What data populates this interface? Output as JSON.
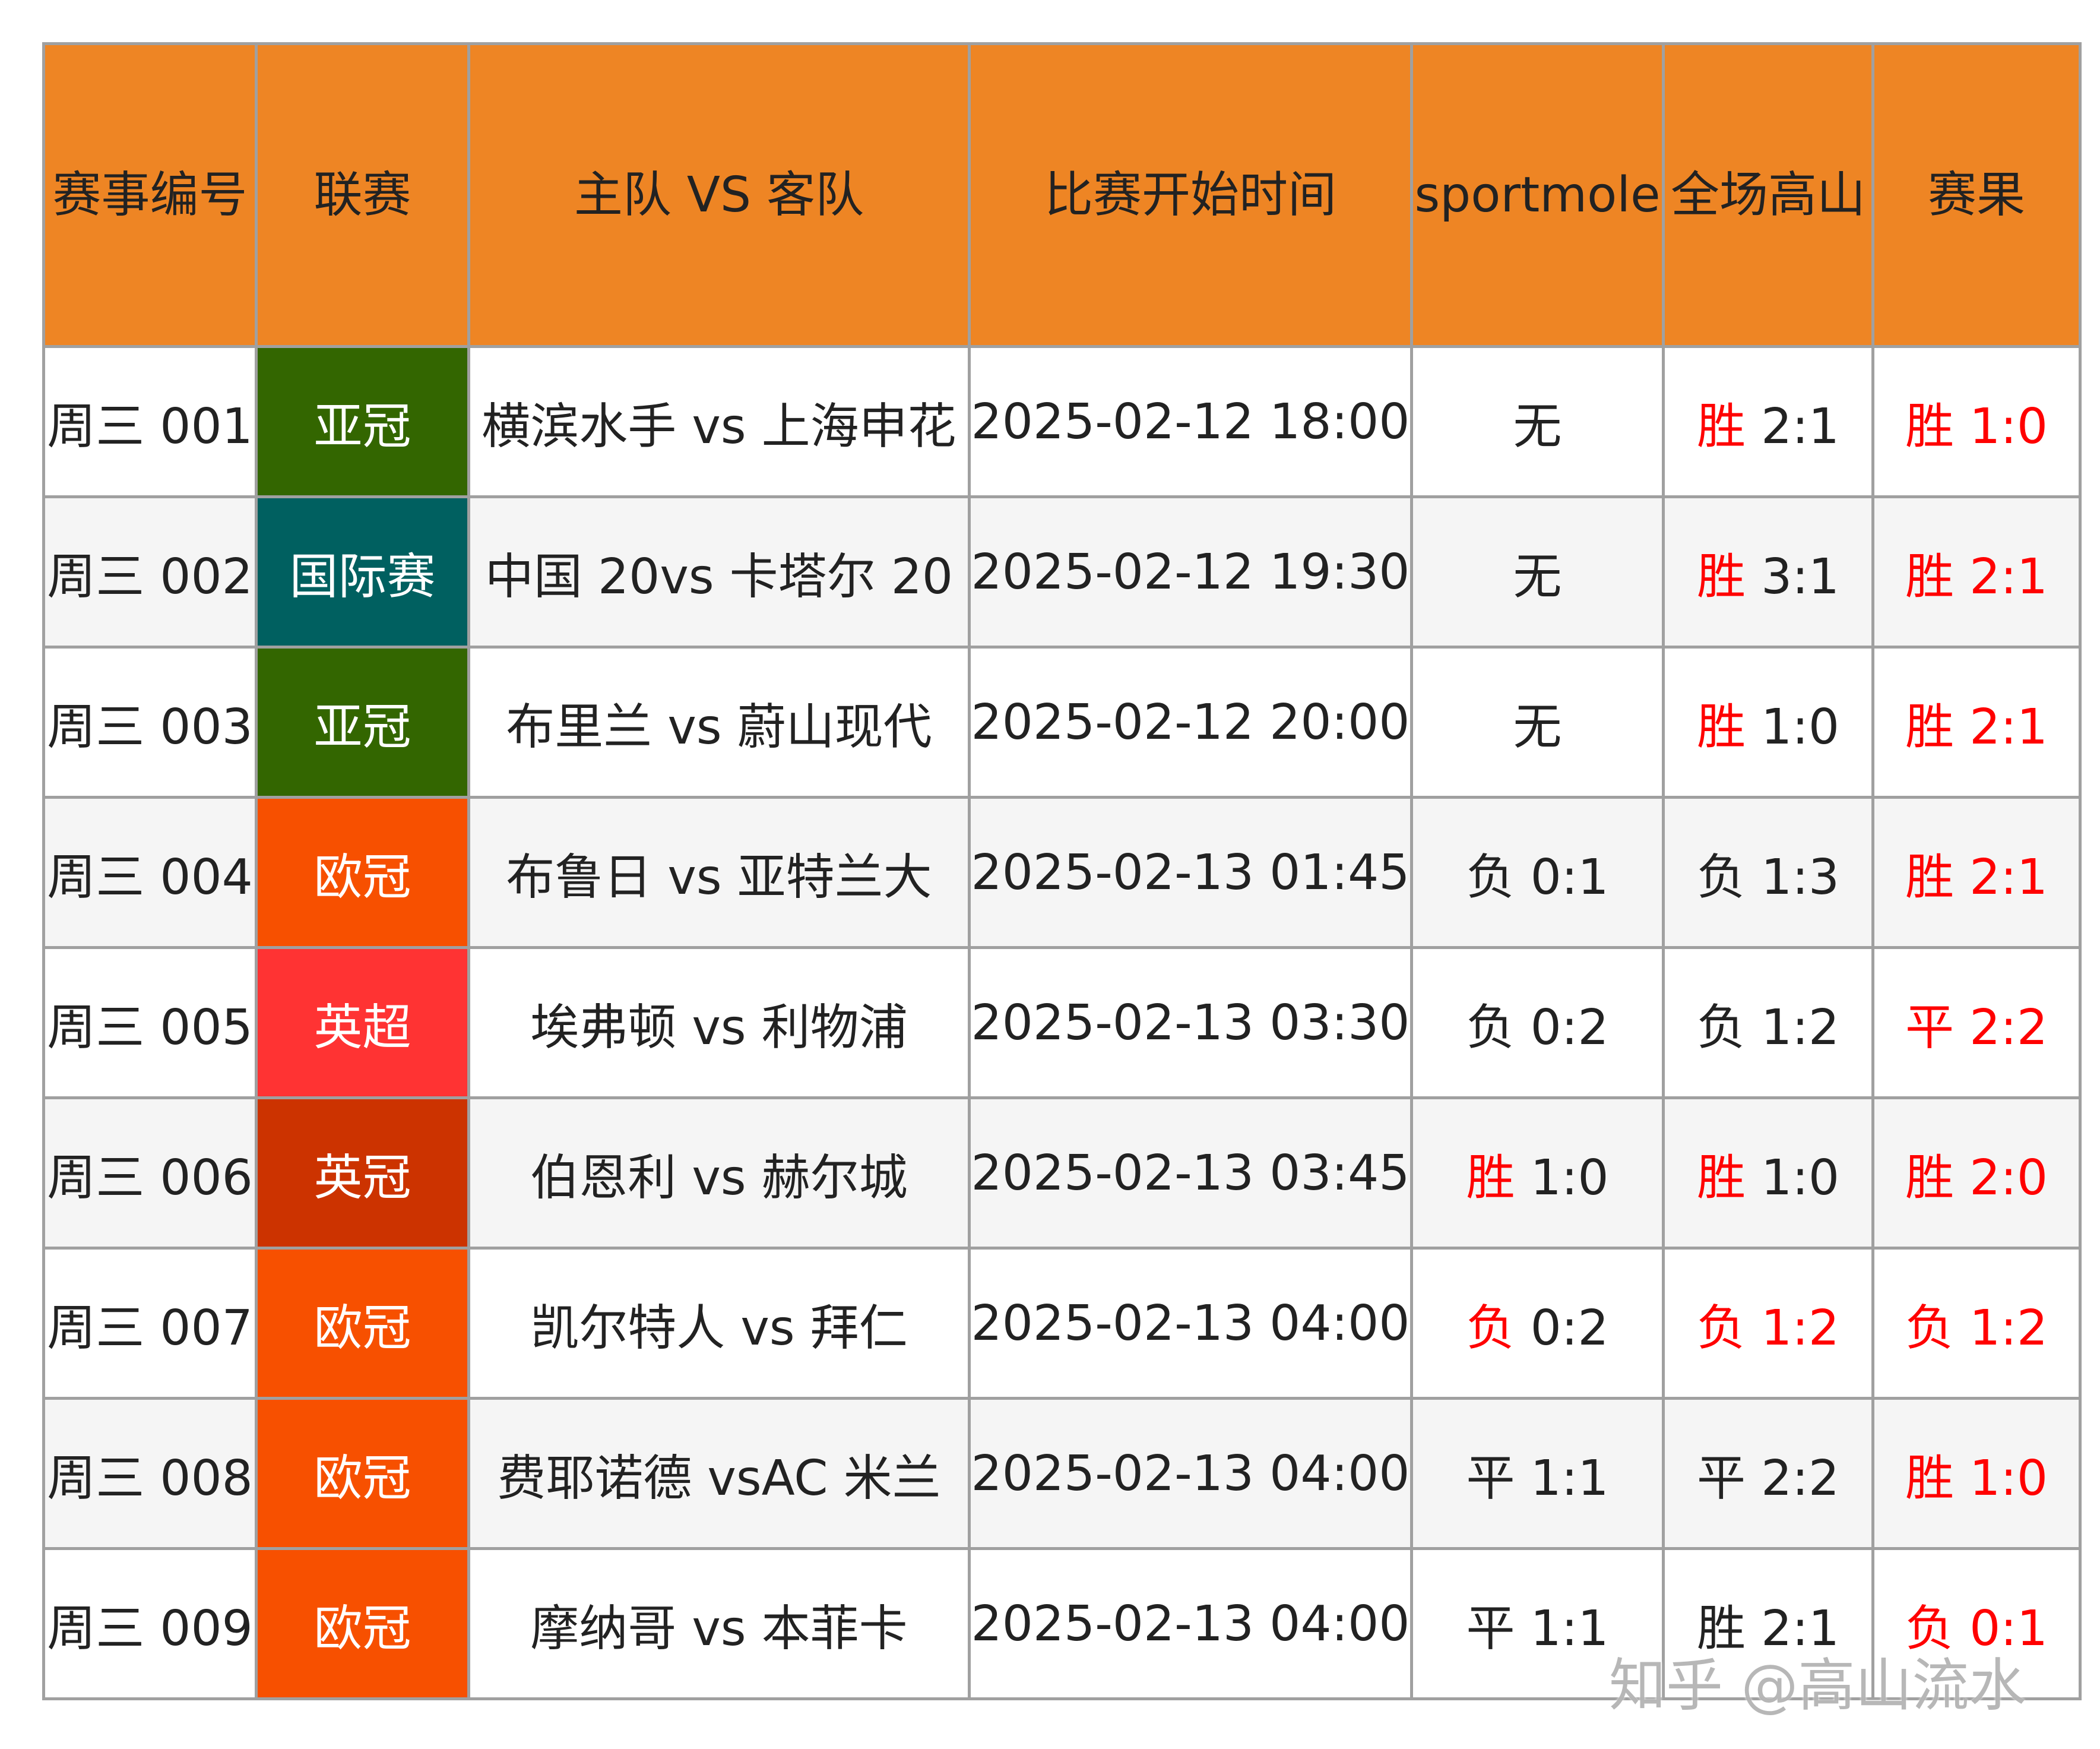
{
  "headers": [
    "赛事编号",
    "联赛",
    "主队 VS 客队",
    "比赛开始时间",
    "sportmole",
    "全场高山",
    "赛果"
  ],
  "league_colors": {
    "亚冠": "#336600",
    "国际赛": "#006060",
    "欧冠": "#f75000",
    "英超": "#ff3333",
    "英冠": "#cc3300"
  },
  "colors": {
    "header_bg": "#ee8524",
    "highlight_text": "#ff0000",
    "alt_row_bg": "#f5f5f5"
  },
  "rows": [
    {
      "id": "周三 001",
      "league": "亚冠",
      "match": "横滨水手 vs 上海申花",
      "time": "2025-02-12 18:00",
      "sportmole": {
        "tag": "无",
        "score": "",
        "red": false
      },
      "gaoshan": {
        "tag": "胜",
        "score": "2:1",
        "tag_red": true,
        "score_red": false
      },
      "result": {
        "tag": "胜",
        "score": "1:0"
      }
    },
    {
      "id": "周三 002",
      "league": "国际赛",
      "match": "中国 20vs 卡塔尔 20",
      "time": "2025-02-12 19:30",
      "sportmole": {
        "tag": "无",
        "score": "",
        "red": false
      },
      "gaoshan": {
        "tag": "胜",
        "score": "3:1",
        "tag_red": true,
        "score_red": false
      },
      "result": {
        "tag": "胜",
        "score": "2:1"
      }
    },
    {
      "id": "周三 003",
      "league": "亚冠",
      "match": "布里兰 vs 蔚山现代",
      "time": "2025-02-12 20:00",
      "sportmole": {
        "tag": "无",
        "score": "",
        "red": false
      },
      "gaoshan": {
        "tag": "胜",
        "score": "1:0",
        "tag_red": true,
        "score_red": false
      },
      "result": {
        "tag": "胜",
        "score": "2:1"
      }
    },
    {
      "id": "周三 004",
      "league": "欧冠",
      "match": "布鲁日 vs 亚特兰大",
      "time": "2025-02-13 01:45",
      "sportmole": {
        "tag": "负",
        "score": "0:1",
        "red": false
      },
      "gaoshan": {
        "tag": "负",
        "score": "1:3",
        "tag_red": false,
        "score_red": false
      },
      "result": {
        "tag": "胜",
        "score": "2:1"
      }
    },
    {
      "id": "周三 005",
      "league": "英超",
      "match": "埃弗顿 vs 利物浦",
      "time": "2025-02-13 03:30",
      "sportmole": {
        "tag": "负",
        "score": "0:2",
        "red": false
      },
      "gaoshan": {
        "tag": "负",
        "score": "1:2",
        "tag_red": false,
        "score_red": false
      },
      "result": {
        "tag": "平",
        "score": "2:2"
      }
    },
    {
      "id": "周三 006",
      "league": "英冠",
      "match": "伯恩利 vs 赫尔城",
      "time": "2025-02-13 03:45",
      "sportmole": {
        "tag": "胜",
        "score": "1:0",
        "red": true
      },
      "gaoshan": {
        "tag": "胜",
        "score": "1:0",
        "tag_red": true,
        "score_red": false
      },
      "result": {
        "tag": "胜",
        "score": "2:0"
      }
    },
    {
      "id": "周三 007",
      "league": "欧冠",
      "match": "凯尔特人 vs 拜仁",
      "time": "2025-02-13 04:00",
      "sportmole": {
        "tag": "负",
        "score": "0:2",
        "red": true
      },
      "gaoshan": {
        "tag": "负",
        "score": "1:2",
        "tag_red": true,
        "score_red": true
      },
      "result": {
        "tag": "负",
        "score": "1:2"
      }
    },
    {
      "id": "周三 008",
      "league": "欧冠",
      "match": "费耶诺德 vsAC 米兰",
      "time": "2025-02-13 04:00",
      "sportmole": {
        "tag": "平",
        "score": "1:1",
        "red": false
      },
      "gaoshan": {
        "tag": "平",
        "score": "2:2",
        "tag_red": false,
        "score_red": false
      },
      "result": {
        "tag": "胜",
        "score": "1:0"
      }
    },
    {
      "id": "周三 009",
      "league": "欧冠",
      "match": "摩纳哥 vs 本菲卡",
      "time": "2025-02-13 04:00",
      "sportmole": {
        "tag": "平",
        "score": "1:1",
        "red": false
      },
      "gaoshan": {
        "tag": "胜",
        "score": "2:1",
        "tag_red": false,
        "score_red": false
      },
      "result": {
        "tag": "负",
        "score": "0:1"
      }
    }
  ],
  "watermark": "知乎 @高山流水"
}
